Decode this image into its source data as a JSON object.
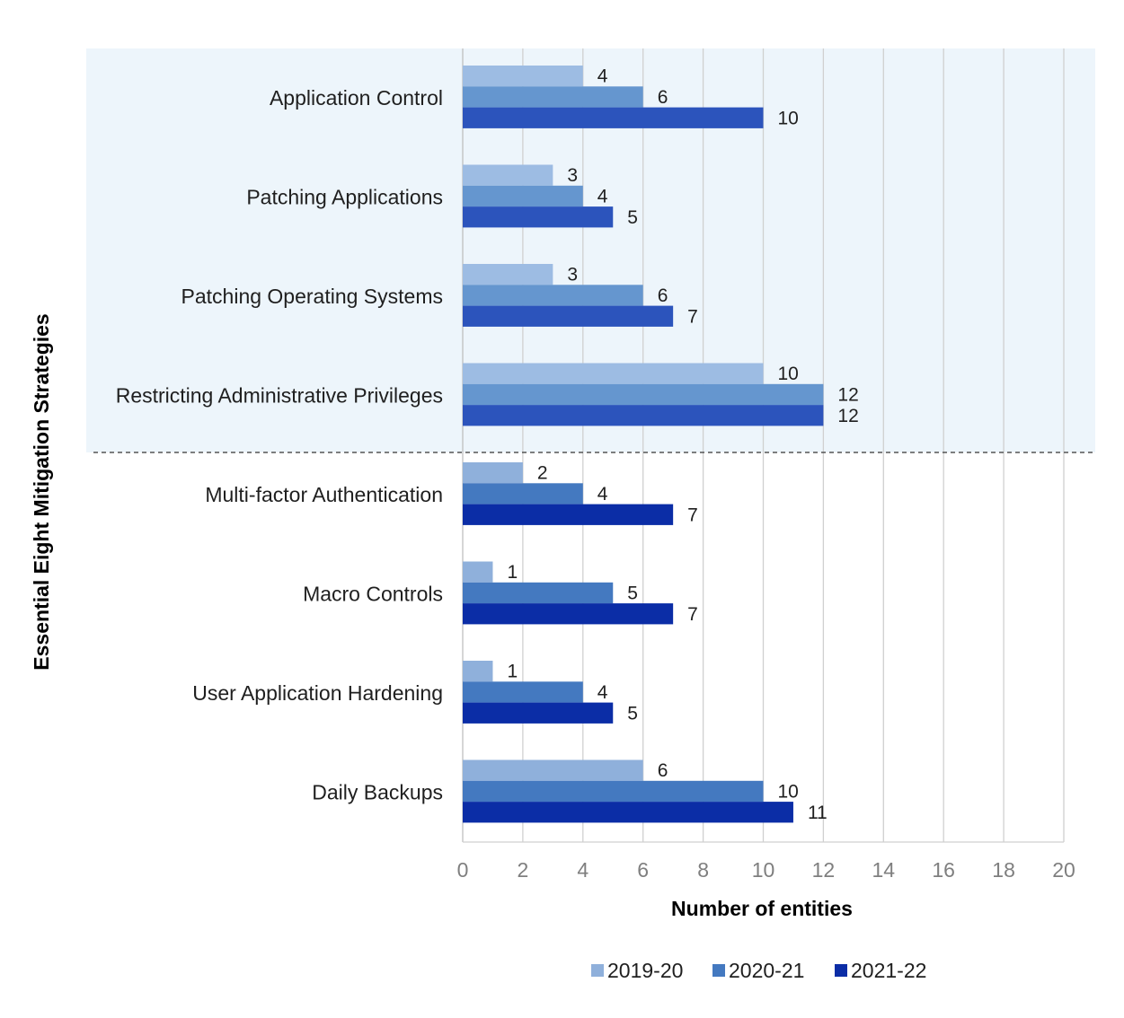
{
  "chart_data": {
    "type": "bar",
    "orientation": "horizontal",
    "title": "",
    "xlabel": "Number of entities",
    "ylabel": "Essential Eight Mitigation Strategies",
    "xlim": [
      0,
      20
    ],
    "xticks": [
      0,
      2,
      4,
      6,
      8,
      10,
      12,
      14,
      16,
      18,
      20
    ],
    "grid": "vertical",
    "legend_position": "bottom",
    "highlight_group": {
      "categories": [
        "Application Control",
        "Patching Applications",
        "Patching Operating Systems",
        "Restricting Administrative Privileges"
      ],
      "background": "#edf5fb",
      "colors": [
        "#9dbce3",
        "#6596cf",
        "#2c54bc"
      ]
    },
    "categories": [
      "Application Control",
      "Patching Applications",
      "Patching Operating Systems",
      "Restricting Administrative Privileges",
      "Multi-factor Authentication",
      "Macro Controls",
      "User Application Hardening",
      "Daily Backups"
    ],
    "series": [
      {
        "name": "2019-20",
        "color": "#8fb0db",
        "values": [
          4,
          3,
          3,
          10,
          2,
          1,
          1,
          6
        ]
      },
      {
        "name": "2020-21",
        "color": "#4479c0",
        "values": [
          6,
          4,
          6,
          12,
          4,
          5,
          4,
          10
        ]
      },
      {
        "name": "2021-22",
        "color": "#0b2da6",
        "values": [
          10,
          5,
          7,
          12,
          7,
          7,
          5,
          11
        ]
      }
    ]
  }
}
